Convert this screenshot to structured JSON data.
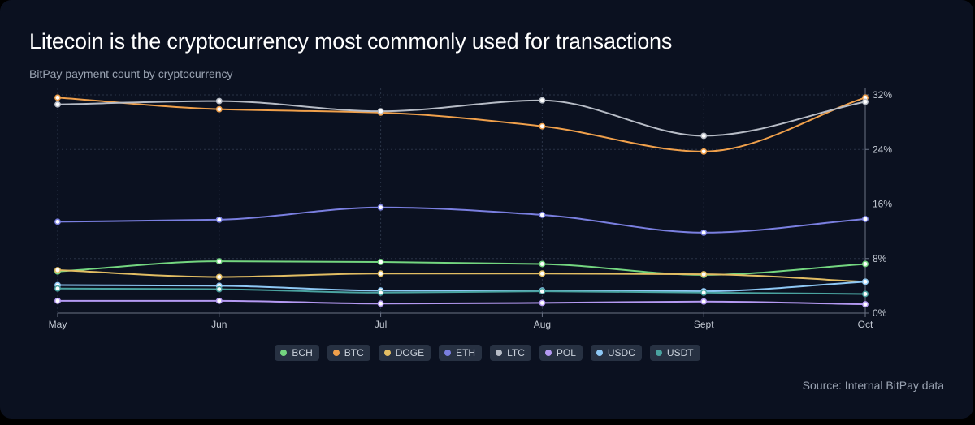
{
  "page": {
    "title": "Litecoin is the cryptocurrency most commonly used for transactions",
    "subtitle": "BitPay payment count by cryptocurrency",
    "source": "Source: Internal BitPay data",
    "background": "#0b1120"
  },
  "chart_data": {
    "type": "line",
    "title": "Litecoin is the cryptocurrency most commonly used for transactions",
    "subtitle": "BitPay payment count by cryptocurrency",
    "categories": [
      "May",
      "Jun",
      "Jul",
      "Aug",
      "Sept",
      "Oct"
    ],
    "y_ticks": [
      "0%",
      "8%",
      "16%",
      "24%",
      "32%"
    ],
    "ylim": [
      0,
      32
    ],
    "y_axis_side": "right",
    "y_unit": "%",
    "grid": true,
    "legend_position": "bottom-center",
    "series": [
      {
        "name": "BCH",
        "color": "#74d680",
        "values": [
          6.1,
          7.6,
          7.5,
          7.2,
          5.6,
          7.2
        ]
      },
      {
        "name": "BTC",
        "color": "#f0a04b",
        "values": [
          31.6,
          29.9,
          29.4,
          27.4,
          23.7,
          31.6
        ]
      },
      {
        "name": "DOGE",
        "color": "#e2bd63",
        "values": [
          6.3,
          5.3,
          5.8,
          5.8,
          5.7,
          4.6
        ]
      },
      {
        "name": "ETH",
        "color": "#7a7fe0",
        "values": [
          13.4,
          13.7,
          15.5,
          14.4,
          11.8,
          13.8
        ]
      },
      {
        "name": "LTC",
        "color": "#b7bcc6",
        "values": [
          30.6,
          31.1,
          29.6,
          31.2,
          26.0,
          31.0
        ]
      },
      {
        "name": "POL",
        "color": "#b499f2",
        "values": [
          1.8,
          1.8,
          1.4,
          1.5,
          1.7,
          1.3
        ]
      },
      {
        "name": "USDC",
        "color": "#8ec8f5",
        "values": [
          4.1,
          4.0,
          3.3,
          3.3,
          3.2,
          4.6
        ]
      },
      {
        "name": "USDT",
        "color": "#4aa3a0",
        "values": [
          3.6,
          3.5,
          3.0,
          3.2,
          3.0,
          2.8
        ]
      }
    ]
  }
}
